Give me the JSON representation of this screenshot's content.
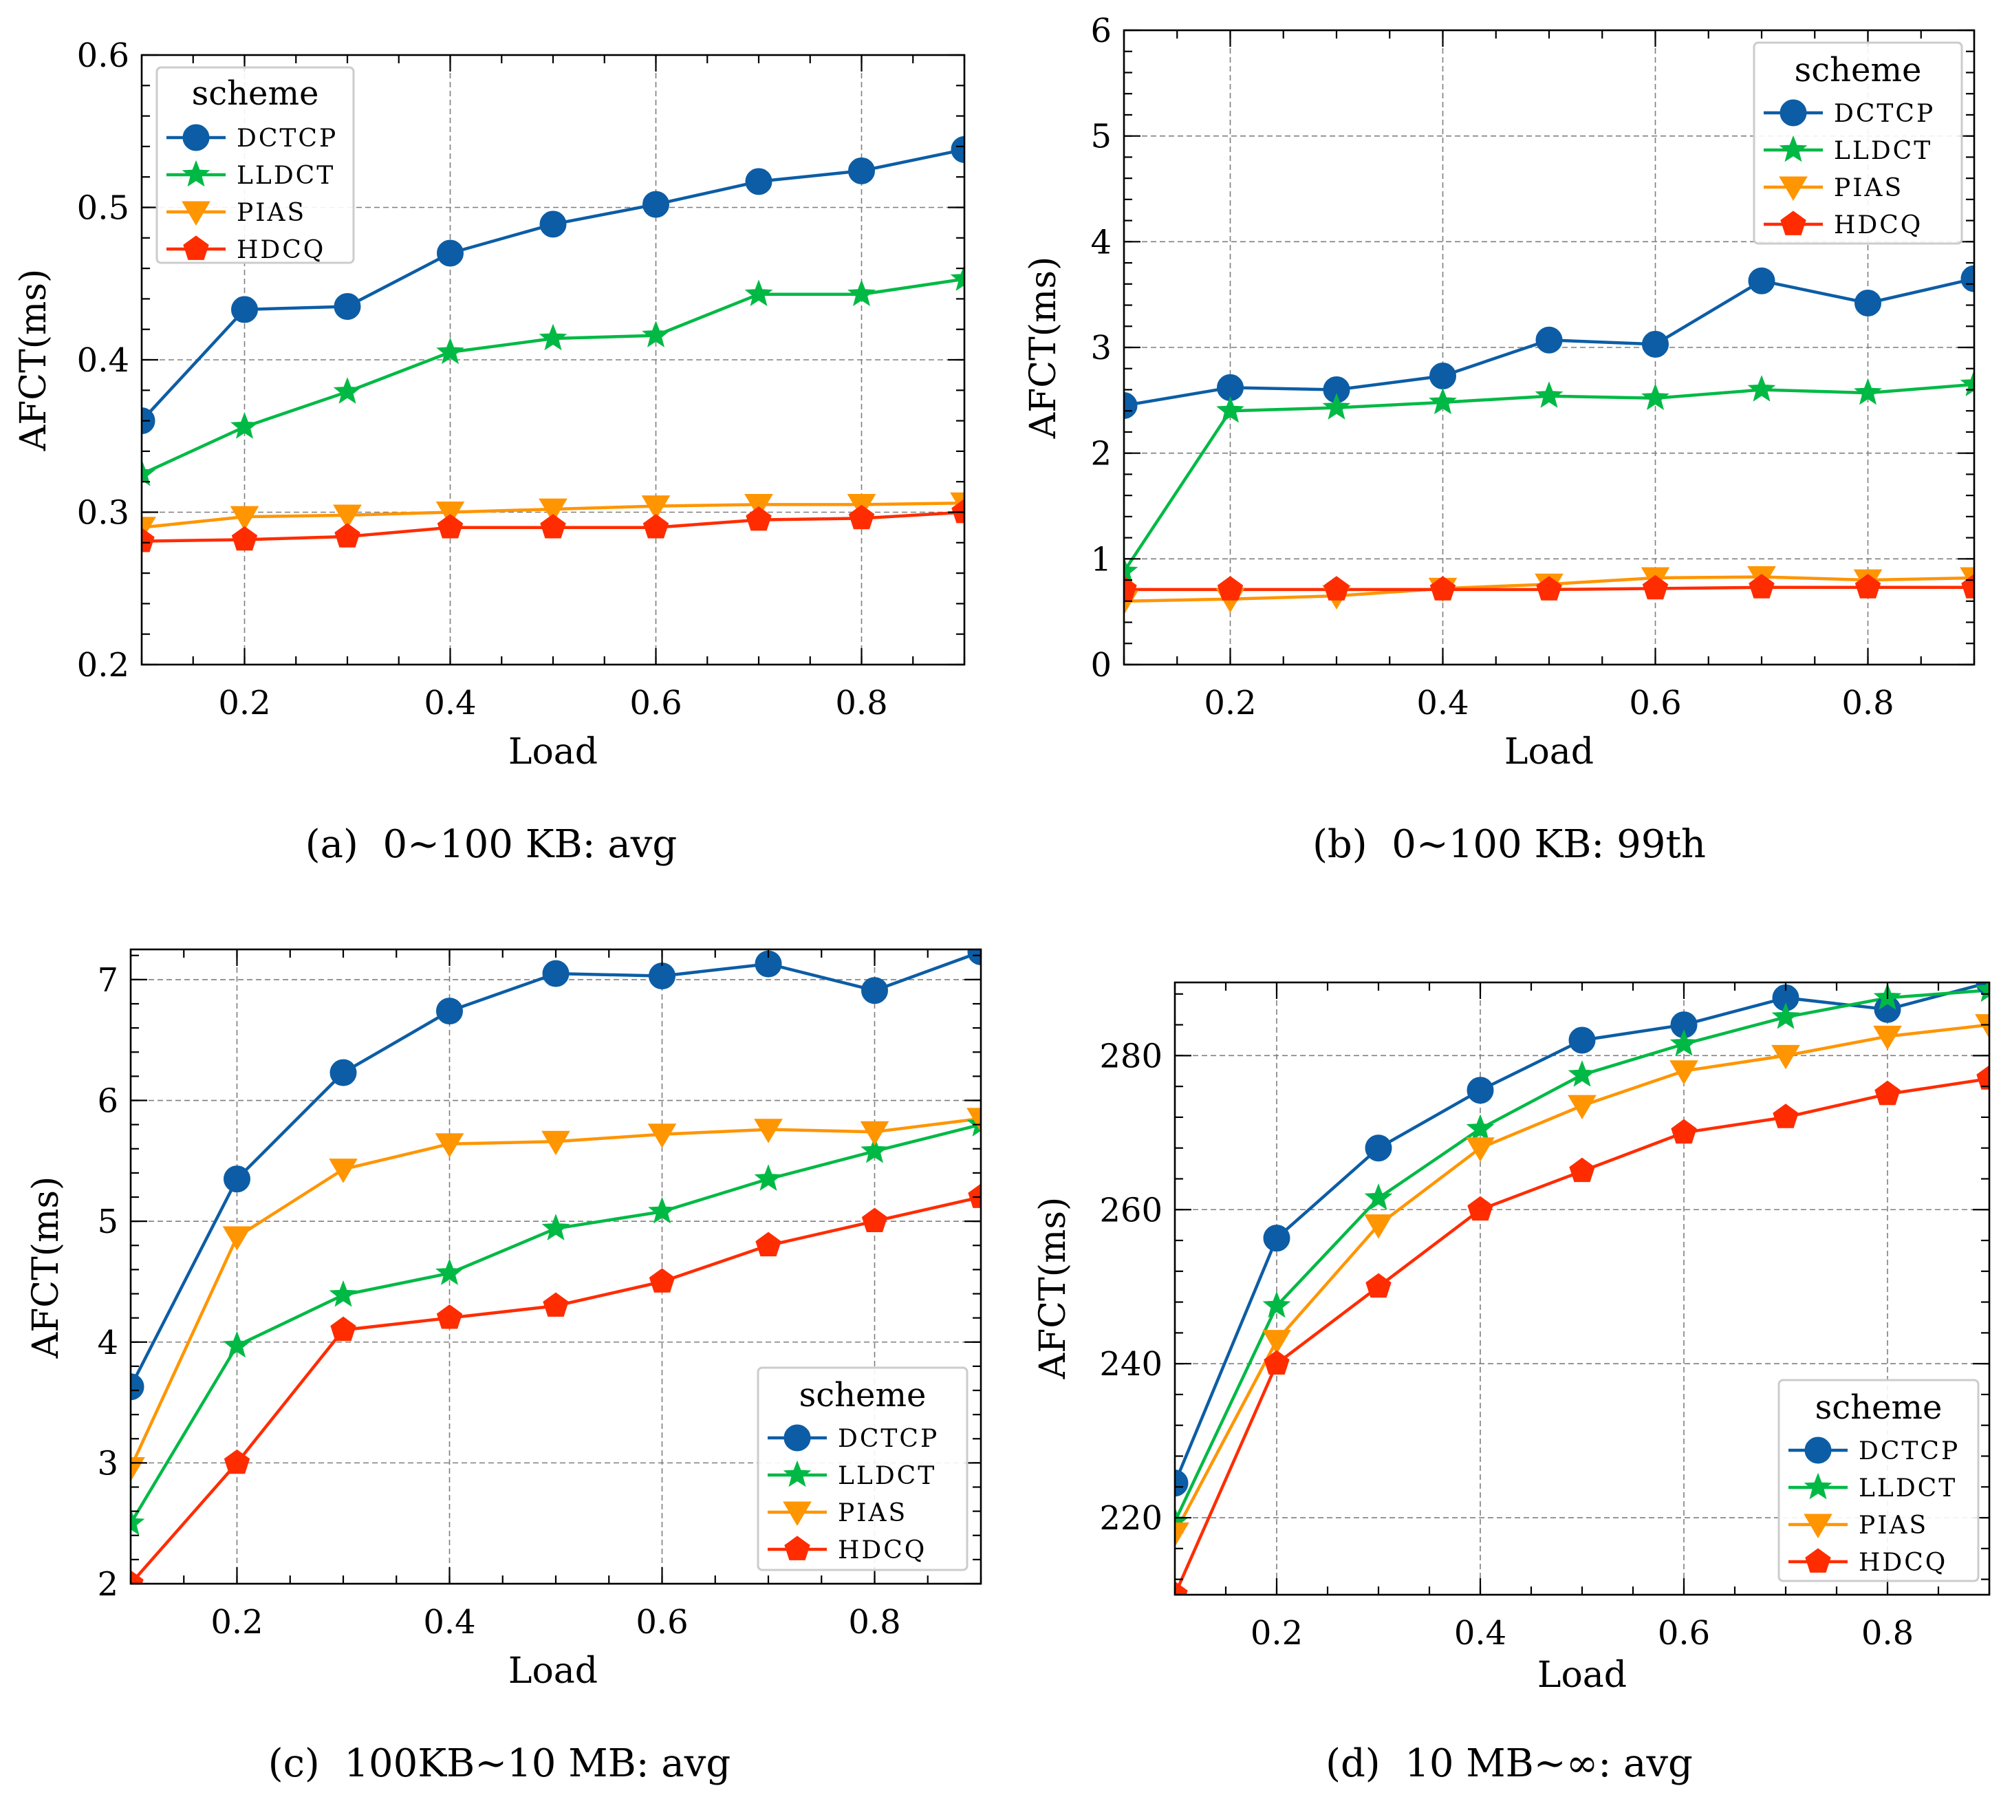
{
  "colors": {
    "DCTCP": "#0c5da5",
    "LLDCT": "#00b945",
    "PIAS": "#ff9500",
    "HDCQ": "#ff2c00"
  },
  "chart_data": [
    {
      "type": "line",
      "caption": "(a)  0~100 KB: avg",
      "xlabel": "Load",
      "ylabel": "AFCT(ms)",
      "xlim": [
        0.1,
        0.9
      ],
      "ylim": [
        0.2,
        0.6
      ],
      "xticks": [
        0.2,
        0.4,
        0.6,
        0.8
      ],
      "xtick_labels": [
        "0.2",
        "0.4",
        "0.6",
        "0.8"
      ],
      "yticks": [
        0.2,
        0.3,
        0.4,
        0.5,
        0.6
      ],
      "ytick_labels": [
        "0.2",
        "0.3",
        "0.4",
        "0.5",
        "0.6"
      ],
      "grid": true,
      "legend": {
        "title": "scheme",
        "position": "top-left"
      },
      "x": [
        0.1,
        0.2,
        0.3,
        0.4,
        0.5,
        0.6,
        0.7,
        0.8,
        0.9
      ],
      "series": [
        {
          "name": "DCTCP",
          "marker": "circle",
          "values": [
            0.36,
            0.433,
            0.435,
            0.47,
            0.489,
            0.502,
            0.517,
            0.524,
            0.538
          ]
        },
        {
          "name": "LLDCT",
          "marker": "star",
          "values": [
            0.325,
            0.356,
            0.379,
            0.405,
            0.414,
            0.416,
            0.443,
            0.443,
            0.453
          ]
        },
        {
          "name": "PIAS",
          "marker": "triangle-down",
          "values": [
            0.29,
            0.297,
            0.298,
            0.3,
            0.302,
            0.304,
            0.305,
            0.305,
            0.306
          ]
        },
        {
          "name": "HDCQ",
          "marker": "pentagon",
          "values": [
            0.281,
            0.282,
            0.284,
            0.29,
            0.29,
            0.29,
            0.295,
            0.296,
            0.3
          ]
        }
      ]
    },
    {
      "type": "line",
      "caption": "(b)  0~100 KB: 99th",
      "xlabel": "Load",
      "ylabel": "AFCT(ms)",
      "xlim": [
        0.1,
        0.9
      ],
      "ylim": [
        0,
        6
      ],
      "xticks": [
        0.2,
        0.4,
        0.6,
        0.8
      ],
      "xtick_labels": [
        "0.2",
        "0.4",
        "0.6",
        "0.8"
      ],
      "yticks": [
        0,
        1,
        2,
        3,
        4,
        5,
        6
      ],
      "ytick_labels": [
        "0",
        "1",
        "2",
        "3",
        "4",
        "5",
        "6"
      ],
      "grid": true,
      "legend": {
        "title": "scheme",
        "position": "top-right"
      },
      "x": [
        0.1,
        0.2,
        0.3,
        0.4,
        0.5,
        0.6,
        0.7,
        0.8,
        0.9
      ],
      "series": [
        {
          "name": "DCTCP",
          "marker": "circle",
          "values": [
            2.45,
            2.62,
            2.6,
            2.73,
            3.07,
            3.03,
            3.63,
            3.42,
            3.65
          ]
        },
        {
          "name": "LLDCT",
          "marker": "star",
          "values": [
            0.88,
            2.4,
            2.43,
            2.48,
            2.54,
            2.52,
            2.6,
            2.57,
            2.65
          ]
        },
        {
          "name": "PIAS",
          "marker": "triangle-down",
          "values": [
            0.6,
            0.62,
            0.65,
            0.72,
            0.76,
            0.82,
            0.83,
            0.8,
            0.82
          ]
        },
        {
          "name": "HDCQ",
          "marker": "pentagon",
          "values": [
            0.71,
            0.71,
            0.71,
            0.71,
            0.71,
            0.72,
            0.73,
            0.73,
            0.73
          ]
        }
      ]
    },
    {
      "type": "line",
      "caption": "(c)  100KB~10 MB: avg",
      "xlabel": "Load",
      "ylabel": "AFCT(ms)",
      "xlim": [
        0.1,
        0.9
      ],
      "ylim": [
        2,
        7.25
      ],
      "xticks": [
        0.2,
        0.4,
        0.6,
        0.8
      ],
      "xtick_labels": [
        "0.2",
        "0.4",
        "0.6",
        "0.8"
      ],
      "yticks": [
        2,
        3,
        4,
        5,
        6,
        7
      ],
      "ytick_labels": [
        "2",
        "3",
        "4",
        "5",
        "6",
        "7"
      ],
      "grid": true,
      "legend": {
        "title": "scheme",
        "position": "bottom-right"
      },
      "x": [
        0.1,
        0.2,
        0.3,
        0.4,
        0.5,
        0.6,
        0.7,
        0.8,
        0.9
      ],
      "series": [
        {
          "name": "DCTCP",
          "marker": "circle",
          "values": [
            3.63,
            5.35,
            6.23,
            6.74,
            7.05,
            7.03,
            7.13,
            6.91,
            7.23
          ]
        },
        {
          "name": "LLDCT",
          "marker": "star",
          "values": [
            2.5,
            3.97,
            4.39,
            4.57,
            4.94,
            5.08,
            5.35,
            5.58,
            5.8
          ]
        },
        {
          "name": "PIAS",
          "marker": "triangle-down",
          "values": [
            2.96,
            4.87,
            5.43,
            5.64,
            5.66,
            5.72,
            5.76,
            5.74,
            5.85
          ]
        },
        {
          "name": "HDCQ",
          "marker": "pentagon",
          "values": [
            2.0,
            3.0,
            4.1,
            4.2,
            4.3,
            4.5,
            4.8,
            5.0,
            5.2
          ]
        }
      ]
    },
    {
      "type": "line",
      "caption": "(d)  10 MB~∞: avg",
      "xlabel": "Load",
      "ylabel": "AFCT(ms)",
      "xlim": [
        0.1,
        0.9
      ],
      "ylim": [
        210,
        289.5
      ],
      "xticks": [
        0.2,
        0.4,
        0.6,
        0.8
      ],
      "xtick_labels": [
        "0.2",
        "0.4",
        "0.6",
        "0.8"
      ],
      "yticks": [
        220,
        240,
        260,
        280
      ],
      "ytick_labels": [
        "220",
        "240",
        "260",
        "280"
      ],
      "grid": true,
      "legend": {
        "title": "scheme",
        "position": "bottom-right"
      },
      "x": [
        0.1,
        0.2,
        0.3,
        0.4,
        0.5,
        0.6,
        0.7,
        0.8,
        0.9
      ],
      "series": [
        {
          "name": "DCTCP",
          "marker": "circle",
          "values": [
            224.5,
            256.3,
            268.0,
            275.5,
            282.0,
            284.0,
            287.5,
            286.0,
            289.5
          ]
        },
        {
          "name": "LLDCT",
          "marker": "star",
          "values": [
            219.5,
            247.5,
            261.5,
            270.5,
            277.5,
            281.5,
            285.0,
            287.5,
            288.5
          ]
        },
        {
          "name": "PIAS",
          "marker": "triangle-down",
          "values": [
            218.0,
            243.0,
            258.0,
            268.0,
            273.5,
            278.0,
            280.0,
            282.5,
            284.0
          ]
        },
        {
          "name": "HDCQ",
          "marker": "pentagon",
          "values": [
            210.0,
            240.0,
            250.0,
            260.0,
            265.0,
            270.0,
            272.0,
            275.0,
            277.0
          ]
        }
      ]
    }
  ]
}
